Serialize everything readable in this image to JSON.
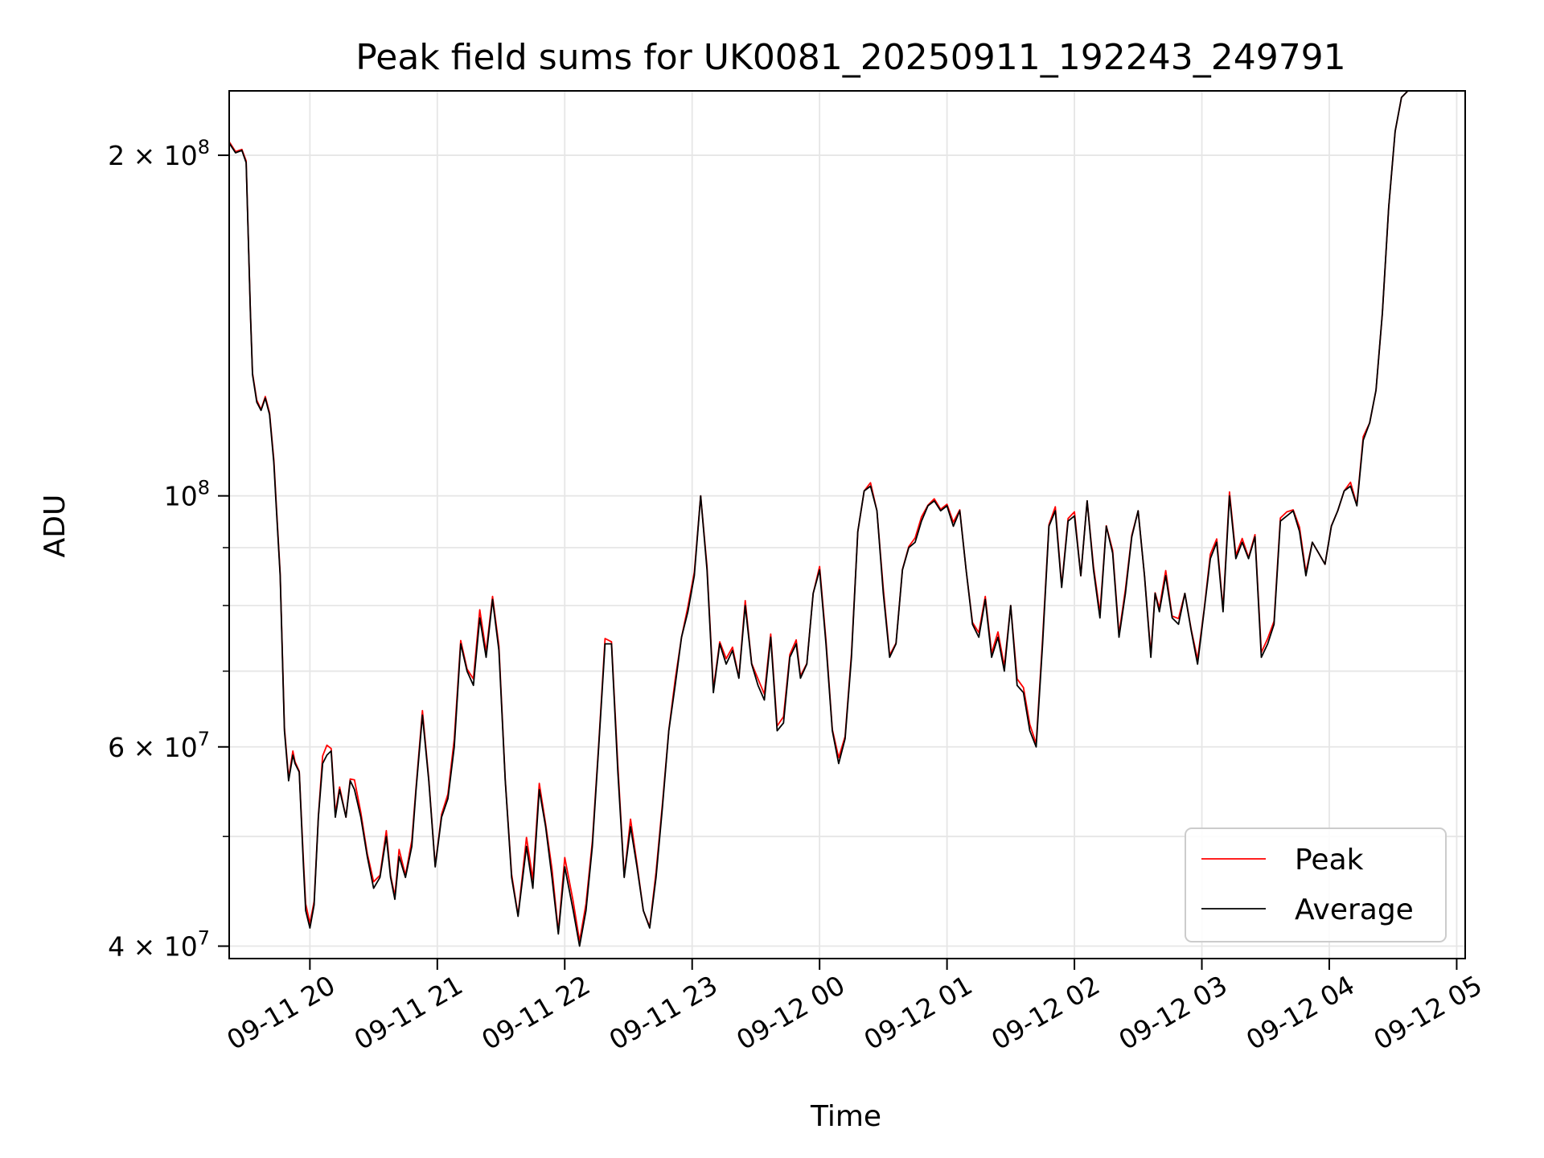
{
  "chart_data": {
    "type": "line",
    "title": "Peak field sums for UK0081_20250911_192243_249791",
    "xlabel": "Time",
    "ylabel": "ADU",
    "yscale": "log",
    "ylim": [
      39000000,
      228000000
    ],
    "xlim": [
      "2025-09-11 19:22",
      "2025-09-12 05:04"
    ],
    "grid": true,
    "legend_position": "bottom-right",
    "x_ticks": [
      "09-11 20",
      "09-11 21",
      "09-11 22",
      "09-11 23",
      "09-12 00",
      "09-12 01",
      "09-12 02",
      "09-12 03",
      "09-12 04",
      "09-12 05"
    ],
    "x_tick_values": [
      "2025-09-11 20:00",
      "2025-09-11 21:00",
      "2025-09-11 22:00",
      "2025-09-11 23:00",
      "2025-09-12 00:00",
      "2025-09-12 01:00",
      "2025-09-12 02:00",
      "2025-09-12 03:00",
      "2025-09-12 04:00",
      "2025-09-12 05:00"
    ],
    "y_ticks": [
      {
        "value": 40000000,
        "base": "4 × 10",
        "exp": "7"
      },
      {
        "value": 60000000,
        "base": "6 × 10",
        "exp": "7"
      },
      {
        "value": 100000000,
        "base": "10",
        "exp": "8"
      },
      {
        "value": 200000000,
        "base": "2 × 10",
        "exp": "8"
      }
    ],
    "y_minor_ticks": [
      50000000,
      70000000,
      80000000,
      90000000
    ],
    "series": [
      {
        "name": "Peak",
        "color": "#ff0000"
      },
      {
        "name": "Average",
        "color": "#000000"
      }
    ],
    "x": [
      "2025-09-11 19:22",
      "2025-09-11 19:25",
      "2025-09-11 19:28",
      "2025-09-11 19:30",
      "2025-09-11 19:32",
      "2025-09-11 19:33",
      "2025-09-11 19:35",
      "2025-09-11 19:37",
      "2025-09-11 19:39",
      "2025-09-11 19:41",
      "2025-09-11 19:43",
      "2025-09-11 19:44",
      "2025-09-11 19:46",
      "2025-09-11 19:48",
      "2025-09-11 19:50",
      "2025-09-11 19:52",
      "2025-09-11 19:53",
      "2025-09-11 19:55",
      "2025-09-11 19:57",
      "2025-09-11 19:58",
      "2025-09-11 20:00",
      "2025-09-11 20:02",
      "2025-09-11 20:04",
      "2025-09-11 20:06",
      "2025-09-11 20:08",
      "2025-09-11 20:10",
      "2025-09-11 20:12",
      "2025-09-11 20:14",
      "2025-09-11 20:17",
      "2025-09-11 20:19",
      "2025-09-11 20:21",
      "2025-09-11 20:24",
      "2025-09-11 20:27",
      "2025-09-11 20:30",
      "2025-09-11 20:33",
      "2025-09-11 20:36",
      "2025-09-11 20:38",
      "2025-09-11 20:40",
      "2025-09-11 20:42",
      "2025-09-11 20:45",
      "2025-09-11 20:48",
      "2025-09-11 20:50",
      "2025-09-11 20:53",
      "2025-09-11 20:56",
      "2025-09-11 20:59",
      "2025-09-11 21:02",
      "2025-09-11 21:05",
      "2025-09-11 21:08",
      "2025-09-11 21:11",
      "2025-09-11 21:14",
      "2025-09-11 21:17",
      "2025-09-11 21:20",
      "2025-09-11 21:23",
      "2025-09-11 21:26",
      "2025-09-11 21:29",
      "2025-09-11 21:32",
      "2025-09-11 21:35",
      "2025-09-11 21:38",
      "2025-09-11 21:42",
      "2025-09-11 21:45",
      "2025-09-11 21:48",
      "2025-09-11 21:51",
      "2025-09-11 21:54",
      "2025-09-11 21:57",
      "2025-09-11 22:00",
      "2025-09-11 22:04",
      "2025-09-11 22:07",
      "2025-09-11 22:10",
      "2025-09-11 22:13",
      "2025-09-11 22:16",
      "2025-09-11 22:19",
      "2025-09-11 22:22",
      "2025-09-11 22:25",
      "2025-09-11 22:28",
      "2025-09-11 22:31",
      "2025-09-11 22:34",
      "2025-09-11 22:37",
      "2025-09-11 22:40",
      "2025-09-11 22:43",
      "2025-09-11 22:46",
      "2025-09-11 22:49",
      "2025-09-11 22:52",
      "2025-09-11 22:55",
      "2025-09-11 22:58",
      "2025-09-11 23:01",
      "2025-09-11 23:04",
      "2025-09-11 23:07",
      "2025-09-11 23:10",
      "2025-09-11 23:13",
      "2025-09-11 23:16",
      "2025-09-11 23:19",
      "2025-09-11 23:22",
      "2025-09-11 23:25",
      "2025-09-11 23:28",
      "2025-09-11 23:31",
      "2025-09-11 23:34",
      "2025-09-11 23:37",
      "2025-09-11 23:40",
      "2025-09-11 23:43",
      "2025-09-11 23:46",
      "2025-09-11 23:49",
      "2025-09-11 23:51",
      "2025-09-11 23:54",
      "2025-09-11 23:57",
      "2025-09-12 00:00",
      "2025-09-12 00:03",
      "2025-09-12 00:06",
      "2025-09-12 00:09",
      "2025-09-12 00:12",
      "2025-09-12 00:15",
      "2025-09-12 00:18",
      "2025-09-12 00:21",
      "2025-09-12 00:24",
      "2025-09-12 00:27",
      "2025-09-12 00:30",
      "2025-09-12 00:33",
      "2025-09-12 00:36",
      "2025-09-12 00:39",
      "2025-09-12 00:42",
      "2025-09-12 00:45",
      "2025-09-12 00:48",
      "2025-09-12 00:51",
      "2025-09-12 00:54",
      "2025-09-12 00:57",
      "2025-09-12 01:00",
      "2025-09-12 01:03",
      "2025-09-12 01:06",
      "2025-09-12 01:09",
      "2025-09-12 01:12",
      "2025-09-12 01:15",
      "2025-09-12 01:18",
      "2025-09-12 01:21",
      "2025-09-12 01:24",
      "2025-09-12 01:27",
      "2025-09-12 01:30",
      "2025-09-12 01:33",
      "2025-09-12 01:36",
      "2025-09-12 01:39",
      "2025-09-12 01:42",
      "2025-09-12 01:45",
      "2025-09-12 01:48",
      "2025-09-12 01:51",
      "2025-09-12 01:54",
      "2025-09-12 01:57",
      "2025-09-12 02:00",
      "2025-09-12 02:03",
      "2025-09-12 02:06",
      "2025-09-12 02:09",
      "2025-09-12 02:12",
      "2025-09-12 02:15",
      "2025-09-12 02:18",
      "2025-09-12 02:21",
      "2025-09-12 02:24",
      "2025-09-12 02:27",
      "2025-09-12 02:30",
      "2025-09-12 02:33",
      "2025-09-12 02:36",
      "2025-09-12 02:38",
      "2025-09-12 02:40",
      "2025-09-12 02:43",
      "2025-09-12 02:46",
      "2025-09-12 02:49",
      "2025-09-12 02:52",
      "2025-09-12 02:55",
      "2025-09-12 02:58",
      "2025-09-12 03:01",
      "2025-09-12 03:04",
      "2025-09-12 03:07",
      "2025-09-12 03:10",
      "2025-09-12 03:13",
      "2025-09-12 03:16",
      "2025-09-12 03:19",
      "2025-09-12 03:22",
      "2025-09-12 03:25",
      "2025-09-12 03:28",
      "2025-09-12 03:31",
      "2025-09-12 03:34",
      "2025-09-12 03:37",
      "2025-09-12 03:40",
      "2025-09-12 03:43",
      "2025-09-12 03:46",
      "2025-09-12 03:49",
      "2025-09-12 03:52",
      "2025-09-12 03:55",
      "2025-09-12 03:58",
      "2025-09-12 04:01",
      "2025-09-12 04:04",
      "2025-09-12 04:07",
      "2025-09-12 04:10",
      "2025-09-12 04:13",
      "2025-09-12 04:16",
      "2025-09-12 04:19",
      "2025-09-12 04:22",
      "2025-09-12 04:25",
      "2025-09-12 04:28",
      "2025-09-12 04:31",
      "2025-09-12 04:34",
      "2025-09-12 04:37",
      "2025-09-12 04:40",
      "2025-09-12 04:43",
      "2025-09-12 04:46",
      "2025-09-12 04:49",
      "2025-09-12 04:52",
      "2025-09-12 04:55",
      "2025-09-12 04:58",
      "2025-09-12 05:01",
      "2025-09-12 05:04"
    ],
    "average": [
      205000000,
      201000000,
      202000000,
      197000000,
      145000000,
      128000000,
      121000000,
      119000000,
      122000000,
      118000000,
      107000000,
      99000000,
      85000000,
      62000000,
      56000000,
      59000000,
      58000000,
      57000000,
      47000000,
      43000000,
      41500000,
      43500000,
      52000000,
      58000000,
      59000000,
      59500000,
      52000000,
      55000000,
      52000000,
      56000000,
      55000000,
      52000000,
      48000000,
      45000000,
      46000000,
      50000000,
      46000000,
      44000000,
      48000000,
      46000000,
      49000000,
      55000000,
      64000000,
      56000000,
      47000000,
      52000000,
      54000000,
      60000000,
      74000000,
      70000000,
      68000000,
      78000000,
      72000000,
      81000000,
      73000000,
      56000000,
      46000000,
      42500000,
      49000000,
      45000000,
      55000000,
      51000000,
      46000000,
      41000000,
      47000000,
      43000000,
      40000000,
      43000000,
      49000000,
      60000000,
      74000000,
      74000000,
      57000000,
      46000000,
      51000000,
      47000000,
      43000000,
      41500000,
      46000000,
      53000000,
      62000000,
      68000000,
      75000000,
      79000000,
      85000000,
      100000000,
      86000000,
      67000000,
      74000000,
      71000000,
      73000000,
      69000000,
      80000000,
      71000000,
      68000000,
      66000000,
      75000000,
      62000000,
      63000000,
      72000000,
      74000000,
      69000000,
      71000000,
      82000000,
      86000000,
      74000000,
      62000000,
      58000000,
      61000000,
      72000000,
      93000000,
      101000000,
      102000000,
      97000000,
      82000000,
      72000000,
      74000000,
      86000000,
      90000000,
      91000000,
      95000000,
      98000000,
      99000000,
      97000000,
      98000000,
      94000000,
      97000000,
      86000000,
      77000000,
      75000000,
      81000000,
      72000000,
      75000000,
      70000000,
      80000000,
      68000000,
      67000000,
      62000000,
      60000000,
      74000000,
      94000000,
      97000000,
      83000000,
      95000000,
      96000000,
      85000000,
      99000000,
      86000000,
      78000000,
      94000000,
      89000000,
      75000000,
      82000000,
      92000000,
      97000000,
      85000000,
      72000000,
      82000000,
      79000000,
      85000000,
      78000000,
      77000000,
      82000000,
      76000000,
      71000000,
      79000000,
      88000000,
      91000000,
      79000000,
      100000000,
      88000000,
      91000000,
      88000000,
      92000000,
      72000000,
      74000000,
      77000000,
      95000000,
      96000000,
      97000000,
      93000000,
      85000000,
      91000000,
      89000000,
      87000000,
      94000000,
      97000000,
      101000000,
      102000000,
      98000000,
      112000000,
      116000000,
      124000000,
      145000000,
      180000000,
      210000000,
      225000000,
      228000000,
      228000000,
      228000000,
      228000000,
      228000000,
      228000000,
      228000000,
      228000000,
      228000000
    ],
    "peak": [
      205600000,
      201500000,
      202400000,
      197700000,
      145300000,
      128400000,
      121500000,
      119200000,
      122400000,
      118400000,
      107700000,
      99700000,
      85400000,
      62400000,
      56300000,
      59500000,
      58200000,
      57100000,
      47500000,
      43600000,
      41900000,
      43800000,
      52100000,
      58900000,
      60200000,
      59800000,
      52400000,
      55300000,
      52000000,
      56200000,
      56100000,
      52500000,
      48300000,
      45600000,
      46200000,
      50600000,
      46200000,
      44300000,
      48700000,
      46200000,
      49600000,
      55300000,
      64600000,
      56200000,
      47100000,
      52300000,
      54500000,
      61000000,
      74500000,
      70300000,
      68900000,
      79300000,
      72800000,
      81500000,
      73700000,
      56100000,
      46300000,
      42600000,
      49900000,
      45800000,
      55700000,
      51300000,
      46800000,
      41200000,
      47900000,
      43800000,
      40400000,
      43600000,
      49500000,
      60300000,
      74800000,
      74300000,
      57800000,
      46100000,
      51800000,
      47300000,
      43000000,
      41600000,
      46500000,
      53400000,
      62100000,
      68800000,
      75000000,
      79800000,
      85600000,
      100000000,
      86600000,
      67500000,
      74300000,
      71800000,
      73500000,
      69100000,
      80800000,
      71100000,
      68900000,
      66800000,
      75500000,
      62600000,
      63800000,
      72400000,
      74600000,
      69300000,
      71100000,
      82000000,
      86600000,
      74600000,
      62200000,
      58700000,
      61300000,
      72500000,
      93000000,
      101000000,
      102700000,
      97000000,
      82800000,
      72300000,
      74100000,
      86100000,
      90200000,
      91800000,
      95800000,
      98100000,
      99400000,
      97300000,
      98300000,
      94800000,
      97200000,
      86000000,
      77300000,
      75700000,
      81500000,
      72600000,
      75800000,
      70700000,
      80000000,
      68900000,
      67700000,
      62800000,
      60400000,
      74800000,
      94300000,
      97800000,
      83300000,
      95500000,
      96800000,
      85000000,
      99000000,
      86600000,
      78800000,
      94100000,
      89500000,
      75500000,
      82700000,
      92300000,
      97000000,
      85000000,
      72500000,
      82100000,
      79600000,
      85900000,
      78300000,
      77900000,
      82000000,
      76200000,
      71700000,
      79200000,
      88800000,
      91600000,
      79500000,
      100800000,
      88600000,
      91700000,
      88200000,
      92400000,
      72700000,
      74800000,
      77500000,
      95600000,
      96800000,
      97200000,
      93800000,
      85600000,
      91000000,
      89000000,
      87000000,
      94100000,
      97000000,
      101000000,
      102800000,
      98200000,
      112800000,
      116000000,
      124000000,
      145000000,
      180000000,
      210000000,
      225000000,
      228000000,
      228000000,
      228000000,
      228000000,
      228000000,
      228000000,
      228000000,
      228000000,
      228000000
    ]
  }
}
